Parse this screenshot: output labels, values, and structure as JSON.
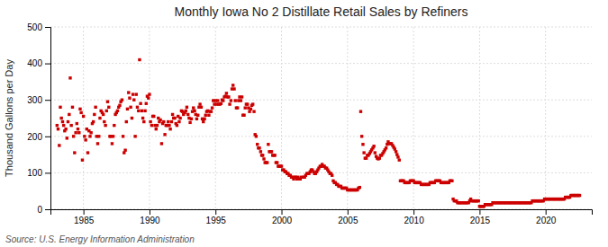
{
  "chart_data": {
    "type": "scatter",
    "title": "Monthly Iowa No 2 Distillate Retail Sales by Refiners",
    "y_label": "Thousand Gallons per Day",
    "annotations": [
      "Source: U.S. Energy Information Administration"
    ],
    "color": "#cc0000",
    "marker": "square",
    "grid": true,
    "xlim": [
      1982.5,
      2023.5
    ],
    "xticks": [
      1985,
      1990,
      1995,
      2000,
      2005,
      2010,
      2015,
      2020
    ],
    "ylim": [
      0,
      500
    ],
    "yticks": [
      0,
      100,
      200,
      300,
      400,
      500
    ],
    "x": [
      1983.0,
      1983.08,
      1983.17,
      1983.25,
      1983.33,
      1983.42,
      1983.5,
      1983.58,
      1983.67,
      1983.75,
      1983.83,
      1983.92,
      1984.0,
      1984.08,
      1984.17,
      1984.25,
      1984.33,
      1984.42,
      1984.5,
      1984.58,
      1984.67,
      1984.75,
      1984.83,
      1984.92,
      1985.0,
      1985.08,
      1985.17,
      1985.25,
      1985.33,
      1985.42,
      1985.5,
      1985.58,
      1985.67,
      1985.75,
      1985.83,
      1985.92,
      1986.0,
      1986.08,
      1986.17,
      1986.25,
      1986.33,
      1986.42,
      1986.5,
      1986.58,
      1986.67,
      1986.75,
      1986.83,
      1986.92,
      1987.0,
      1987.08,
      1987.17,
      1987.25,
      1987.33,
      1987.42,
      1987.5,
      1987.58,
      1987.67,
      1987.75,
      1987.83,
      1987.92,
      1988.0,
      1988.08,
      1988.17,
      1988.25,
      1988.33,
      1988.42,
      1988.5,
      1988.58,
      1988.67,
      1988.75,
      1988.83,
      1988.92,
      1989.0,
      1989.08,
      1989.17,
      1989.25,
      1989.33,
      1989.42,
      1989.5,
      1989.58,
      1989.67,
      1989.75,
      1989.83,
      1989.92,
      1990.0,
      1990.08,
      1990.17,
      1990.25,
      1990.33,
      1990.42,
      1990.5,
      1990.58,
      1990.67,
      1990.75,
      1990.83,
      1990.92,
      1991.0,
      1991.08,
      1991.17,
      1991.25,
      1991.33,
      1991.42,
      1991.5,
      1991.58,
      1991.67,
      1991.75,
      1991.83,
      1991.92,
      1992.0,
      1992.08,
      1992.17,
      1992.25,
      1992.33,
      1992.42,
      1992.5,
      1992.58,
      1992.67,
      1992.75,
      1992.83,
      1992.92,
      1993.0,
      1993.08,
      1993.17,
      1993.25,
      1993.33,
      1993.42,
      1993.5,
      1993.58,
      1993.67,
      1993.75,
      1993.83,
      1993.92,
      1994.0,
      1994.08,
      1994.17,
      1994.25,
      1994.33,
      1994.42,
      1994.5,
      1994.58,
      1994.67,
      1994.75,
      1994.83,
      1994.92,
      1995.0,
      1995.08,
      1995.17,
      1995.25,
      1995.33,
      1995.42,
      1995.5,
      1995.58,
      1995.67,
      1995.75,
      1995.83,
      1995.92,
      1996.0,
      1996.08,
      1996.17,
      1996.25,
      1996.33,
      1996.42,
      1996.5,
      1996.58,
      1996.67,
      1996.75,
      1996.83,
      1996.92,
      1997.0,
      1997.08,
      1997.17,
      1997.25,
      1997.33,
      1997.42,
      1997.5,
      1997.58,
      1997.67,
      1997.75,
      1997.83,
      1997.92,
      1998.0,
      1998.08,
      1998.17,
      1998.25,
      1998.33,
      1998.42,
      1998.5,
      1998.58,
      1998.67,
      1998.75,
      1998.83,
      1998.92,
      1999.0,
      1999.08,
      1999.17,
      1999.25,
      1999.33,
      1999.42,
      1999.5,
      1999.58,
      1999.67,
      1999.75,
      1999.83,
      1999.92,
      2000.0,
      2000.08,
      2000.17,
      2000.25,
      2000.33,
      2000.42,
      2000.5,
      2000.58,
      2000.67,
      2000.75,
      2000.83,
      2000.92,
      2001.0,
      2001.08,
      2001.17,
      2001.25,
      2001.33,
      2001.42,
      2001.5,
      2001.67,
      2001.75,
      2001.83,
      2001.92,
      2002.0,
      2002.08,
      2002.17,
      2002.25,
      2002.33,
      2002.42,
      2002.5,
      2002.58,
      2002.67,
      2002.75,
      2002.83,
      2002.92,
      2003.0,
      2003.08,
      2003.17,
      2003.25,
      2003.33,
      2003.42,
      2003.5,
      2003.58,
      2003.67,
      2003.75,
      2003.83,
      2003.92,
      2004.0,
      2004.08,
      2004.17,
      2004.25,
      2004.33,
      2004.42,
      2004.5,
      2004.58,
      2004.67,
      2004.75,
      2004.83,
      2004.92,
      2005.0,
      2005.08,
      2005.17,
      2005.25,
      2005.33,
      2005.42,
      2005.5,
      2005.58,
      2005.67,
      2005.75,
      2005.83,
      2005.92,
      2006.0,
      2006.08,
      2006.17,
      2006.25,
      2006.33,
      2006.42,
      2006.5,
      2006.58,
      2006.67,
      2006.75,
      2006.83,
      2006.92,
      2007.0,
      2007.08,
      2007.17,
      2007.25,
      2007.33,
      2007.42,
      2007.5,
      2007.58,
      2007.67,
      2007.75,
      2007.83,
      2007.92,
      2008.0,
      2008.08,
      2008.17,
      2008.25,
      2008.33,
      2008.42,
      2008.5,
      2008.58,
      2008.67,
      2008.75,
      2008.83,
      2008.92,
      2009.0,
      2009.08,
      2009.17,
      2009.25,
      2009.33,
      2009.42,
      2009.5,
      2009.58,
      2009.67,
      2009.75,
      2009.83,
      2009.92,
      2010.0,
      2010.08,
      2010.17,
      2010.25,
      2010.33,
      2010.42,
      2010.5,
      2010.58,
      2010.67,
      2010.75,
      2010.83,
      2010.92,
      2011.0,
      2011.08,
      2011.17,
      2011.25,
      2011.33,
      2011.42,
      2011.5,
      2011.58,
      2011.67,
      2011.75,
      2011.83,
      2011.92,
      2012.0,
      2012.08,
      2012.17,
      2012.25,
      2012.33,
      2012.42,
      2012.5,
      2012.58,
      2012.67,
      2012.75,
      2012.83,
      2012.92,
      2013.0,
      2013.08,
      2013.17,
      2013.25,
      2013.33,
      2013.42,
      2013.5,
      2013.58,
      2013.67,
      2013.75,
      2013.83,
      2013.92,
      2014.0,
      2014.08,
      2014.17,
      2014.25,
      2014.33,
      2014.42,
      2014.5,
      2014.58,
      2014.67,
      2014.75,
      2014.83,
      2014.92,
      2015.0,
      2015.08,
      2015.17,
      2015.25,
      2015.33,
      2015.42,
      2015.5,
      2015.58,
      2015.67,
      2015.75,
      2015.83,
      2015.92,
      2016.0,
      2016.08,
      2016.17,
      2016.25,
      2016.33,
      2016.42,
      2016.5,
      2016.58,
      2016.67,
      2016.75,
      2016.83,
      2016.92,
      2017.0,
      2017.08,
      2017.17,
      2017.25,
      2017.33,
      2017.42,
      2017.5,
      2017.58,
      2017.67,
      2017.75,
      2017.83,
      2017.92,
      2018.0,
      2018.08,
      2018.17,
      2018.25,
      2018.33,
      2018.42,
      2018.5,
      2018.58,
      2018.67,
      2018.75,
      2018.83,
      2018.92,
      2019.0,
      2019.08,
      2019.17,
      2019.25,
      2019.33,
      2019.42,
      2019.5,
      2019.58,
      2019.67,
      2019.75,
      2019.83,
      2019.92,
      2020.0,
      2020.08,
      2020.17,
      2020.25,
      2020.33,
      2020.42,
      2020.5,
      2020.58,
      2020.67,
      2020.75,
      2020.83,
      2020.92,
      2021.0,
      2021.08,
      2021.17,
      2021.25,
      2021.33,
      2021.42,
      2021.5,
      2021.58,
      2021.67,
      2021.75,
      2021.83,
      2021.92,
      2022.0,
      2022.08,
      2022.17,
      2022.25,
      2022.33,
      2022.42,
      2022.5,
      2022.58
    ],
    "values": [
      230,
      220,
      175,
      280,
      250,
      240,
      230,
      215,
      220,
      195,
      240,
      260,
      360,
      230,
      280,
      200,
      155,
      210,
      235,
      220,
      210,
      275,
      265,
      135,
      255,
      200,
      190,
      220,
      155,
      215,
      200,
      210,
      235,
      240,
      260,
      280,
      200,
      180,
      200,
      250,
      270,
      265,
      260,
      240,
      230,
      270,
      295,
      280,
      200,
      200,
      180,
      200,
      230,
      260,
      265,
      270,
      280,
      285,
      295,
      300,
      200,
      155,
      162,
      240,
      275,
      320,
      305,
      280,
      250,
      315,
      300,
      200,
      315,
      280,
      270,
      410,
      290,
      270,
      250,
      240,
      270,
      290,
      310,
      305,
      315,
      240,
      230,
      255,
      255,
      230,
      220,
      230,
      250,
      240,
      245,
      180,
      235,
      240,
      205,
      230,
      230,
      240,
      230,
      220,
      240,
      260,
      250,
      250,
      235,
      230,
      255,
      240,
      250,
      270,
      268,
      260,
      265,
      270,
      280,
      260,
      250,
      238,
      248,
      268,
      278,
      270,
      260,
      248,
      258,
      280,
      288,
      280,
      248,
      240,
      248,
      258,
      268,
      270,
      258,
      268,
      268,
      278,
      298,
      288,
      298,
      288,
      298,
      288,
      288,
      290,
      300,
      298,
      308,
      310,
      318,
      308,
      308,
      288,
      298,
      330,
      340,
      330,
      298,
      278,
      278,
      298,
      308,
      298,
      308,
      258,
      258,
      278,
      288,
      288,
      278,
      268,
      275,
      285,
      288,
      268,
      205,
      200,
      178,
      168,
      168,
      158,
      148,
      148,
      138,
      128,
      128,
      128,
      178,
      158,
      158,
      158,
      148,
      148,
      148,
      128,
      128,
      118,
      118,
      118,
      118,
      108,
      108,
      103,
      103,
      98,
      98,
      93,
      93,
      88,
      88,
      83,
      88,
      88,
      83,
      88,
      83,
      83,
      88,
      88,
      88,
      93,
      98,
      98,
      98,
      103,
      108,
      108,
      103,
      98,
      98,
      103,
      108,
      113,
      118,
      118,
      123,
      118,
      118,
      113,
      113,
      108,
      103,
      98,
      98,
      93,
      78,
      73,
      73,
      68,
      68,
      63,
      63,
      63,
      58,
      58,
      58,
      58,
      58,
      53,
      53,
      53,
      53,
      53,
      53,
      53,
      53,
      53,
      53,
      58,
      60,
      268,
      200,
      178,
      155,
      140,
      140,
      148,
      148,
      153,
      158,
      163,
      168,
      173,
      155,
      145,
      140,
      138,
      140,
      148,
      148,
      153,
      158,
      163,
      168,
      178,
      185,
      180,
      180,
      180,
      175,
      170,
      165,
      158,
      150,
      143,
      135,
      78,
      78,
      78,
      78,
      73,
      73,
      73,
      73,
      73,
      78,
      78,
      78,
      78,
      73,
      73,
      73,
      73,
      73,
      73,
      68,
      68,
      68,
      68,
      68,
      68,
      68,
      68,
      73,
      73,
      73,
      73,
      73,
      78,
      78,
      78,
      78,
      78,
      73,
      73,
      73,
      73,
      73,
      73,
      73,
      73,
      78,
      78,
      78,
      28,
      23,
      23,
      23,
      18,
      18,
      18,
      18,
      18,
      18,
      18,
      18,
      18,
      18,
      18,
      23,
      28,
      23,
      23,
      23,
      23,
      23,
      23,
      23,
      8,
      8,
      8,
      8,
      8,
      13,
      13,
      13,
      13,
      13,
      13,
      13,
      18,
      18,
      18,
      18,
      18,
      18,
      18,
      18,
      18,
      18,
      18,
      18,
      18,
      18,
      18,
      18,
      18,
      18,
      18,
      18,
      18,
      18,
      18,
      18,
      18,
      18,
      18,
      18,
      18,
      18,
      18,
      18,
      18,
      18,
      18,
      18,
      23,
      23,
      23,
      23,
      23,
      23,
      23,
      23,
      23,
      23,
      23,
      28,
      28,
      28,
      28,
      28,
      28,
      28,
      28,
      28,
      28,
      28,
      28,
      28,
      28,
      28,
      28,
      28,
      28,
      28,
      33,
      33,
      33,
      33,
      33,
      38,
      38,
      38,
      38,
      38,
      38,
      38,
      38,
      38
    ]
  }
}
